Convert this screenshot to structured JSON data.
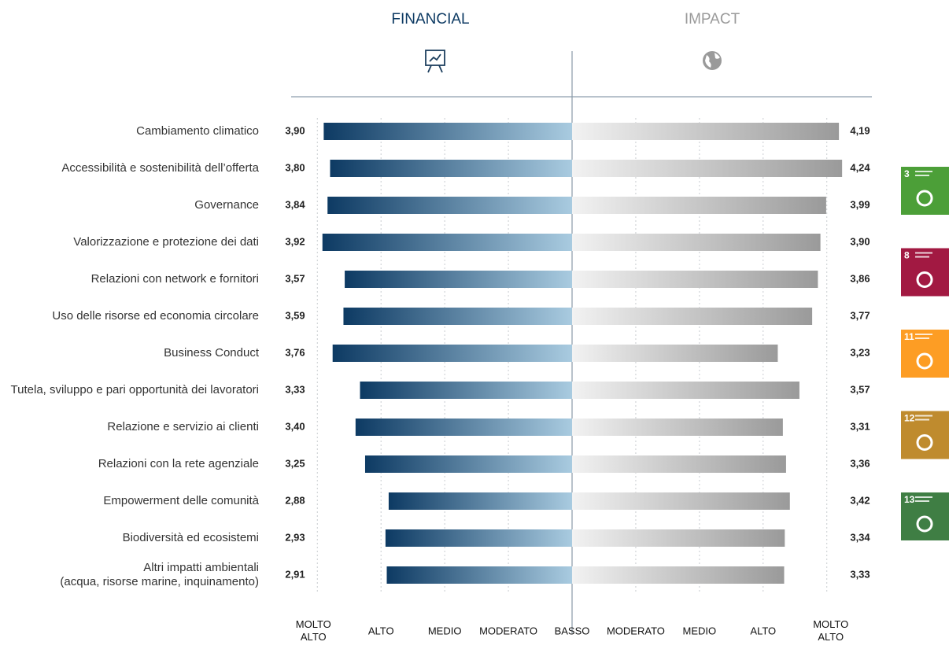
{
  "chart_data": {
    "type": "butterfly",
    "categories": [
      "Cambiamento climatico",
      "Accessibilità e sostenibilità dell’offerta",
      "Governance",
      "Valorizzazione e protezione dei dati",
      "Relazioni con network e fornitori",
      "Uso delle risorse ed economia circolare",
      "Business Conduct",
      "Tutela, sviluppo e pari opportunità dei lavoratori",
      "Relazione e servizio ai clienti",
      "Relazioni con la rete agenziale",
      "Empowerment delle comunità",
      "Biodiversità ed ecosistemi",
      "Altri impatti ambientali\n(acqua, risorse marine, inquinamento)"
    ],
    "series": [
      {
        "name": "FINANCIAL",
        "color": "#0d3a63",
        "color_light": "#a9cbe0",
        "values": [
          3.9,
          3.8,
          3.84,
          3.92,
          3.57,
          3.59,
          3.76,
          3.33,
          3.4,
          3.25,
          2.88,
          2.93,
          2.91
        ],
        "value_labels": [
          "3,90",
          "3,80",
          "3,84",
          "3,92",
          "3,57",
          "3,59",
          "3,76",
          "3,33",
          "3,40",
          "3,25",
          "2,88",
          "2,93",
          "2,91"
        ]
      },
      {
        "name": "IMPACT",
        "color": "#9a9a9a",
        "color_light": "#f2f2f2",
        "values": [
          4.19,
          4.24,
          3.99,
          3.9,
          3.86,
          3.77,
          3.23,
          3.57,
          3.31,
          3.36,
          3.42,
          3.34,
          3.33
        ],
        "value_labels": [
          "4,19",
          "4,24",
          "3,99",
          "3,90",
          "3,86",
          "3,77",
          "3,23",
          "3,57",
          "3,31",
          "3,36",
          "3,42",
          "3,34",
          "3,33"
        ]
      }
    ],
    "xlim": [
      0,
      4.3
    ],
    "xticks": [
      {
        "value": 4,
        "label": "MOLTO\nALTO"
      },
      {
        "value": 3,
        "label": "ALTO"
      },
      {
        "value": 2,
        "label": "MEDIO"
      },
      {
        "value": 1,
        "label": "MODERATO"
      },
      {
        "value": 0,
        "label": "BASSO"
      }
    ],
    "x2ticks": [
      {
        "value": 1,
        "label": "MODERATO"
      },
      {
        "value": 2,
        "label": "MEDIO"
      },
      {
        "value": 3,
        "label": "ALTO"
      },
      {
        "value": 4,
        "label": "MOLTO\nALTO"
      }
    ],
    "grid": true,
    "sdg_icons": [
      {
        "number": "3",
        "color": "#4c9f38"
      },
      {
        "number": "8",
        "color": "#a21942"
      },
      {
        "number": "11",
        "color": "#fd9d24"
      },
      {
        "number": "12",
        "color": "#bf8b2e"
      },
      {
        "number": "13",
        "color": "#3f7e44"
      }
    ]
  }
}
